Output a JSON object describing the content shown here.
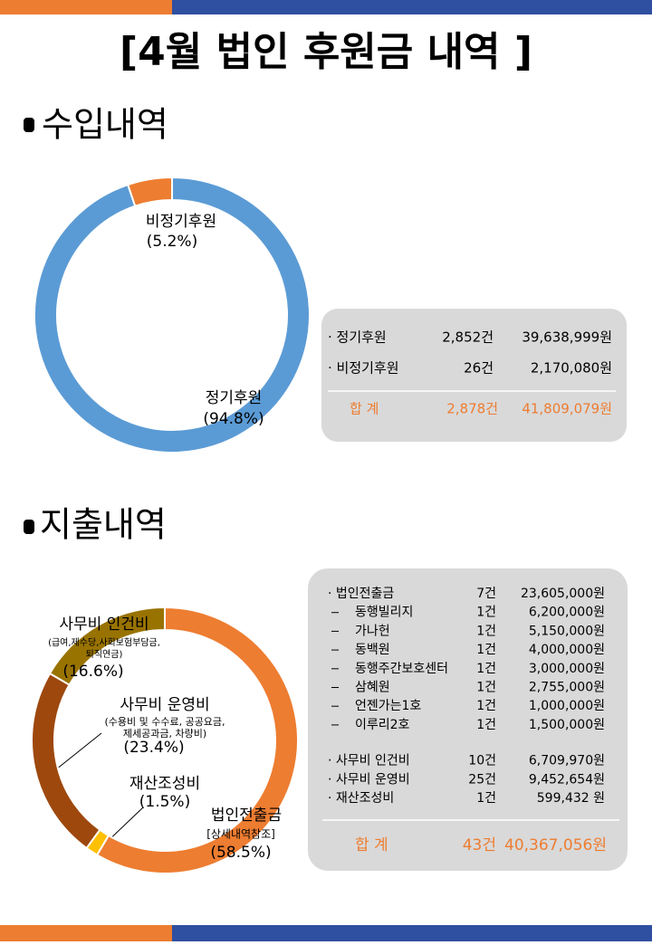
{
  "header": {
    "title": "[4월 법인 후원금 내역 ]"
  },
  "income": {
    "heading": "수입내역",
    "chart": {
      "type": "pie",
      "categories": [
        "정기후원",
        "비정기후원"
      ],
      "values": [
        94.8,
        5.2
      ],
      "value_labels": [
        "(94.8%)",
        "(5.2%)"
      ],
      "colors": [
        "#5b9bd5",
        "#ed7d31"
      ]
    },
    "table": {
      "rows": [
        [
          "· 정기후원",
          "2,852건",
          "39,638,999원"
        ],
        [
          "· 비정기후원",
          "26건",
          "2,170,080원"
        ]
      ],
      "total": [
        "합  계",
        "2,878건",
        "41,809,079원"
      ]
    }
  },
  "expense": {
    "heading": "지출내역",
    "chart": {
      "type": "pie",
      "categories": [
        "법인전출금",
        "재산조성비",
        "사무비 운영비",
        "사무비 인건비"
      ],
      "values": [
        58.5,
        1.5,
        23.4,
        16.6
      ],
      "value_labels": [
        "(58.5%)",
        "(1.5%)",
        "(23.4%)",
        "(16.6%)"
      ],
      "notes": [
        [
          "[상세내역참조]"
        ],
        null,
        [
          "(수용비 및 수수료, 공공요금,",
          "제세공과금, 차량비)"
        ],
        [
          "(급여,제수당,사회보험부담금,",
          "퇴직연금)"
        ]
      ],
      "colors": [
        "#ed7d31",
        "#ffc000",
        "#9e480e",
        "#997300"
      ]
    },
    "table": {
      "rows": [
        {
          "name": "· 법인전출금",
          "count": "7건",
          "amount": "23,605,000원",
          "sub": [
            [
              "동행빌리지",
              "1건",
              "6,200,000원"
            ],
            [
              "가나헌",
              "1건",
              "5,150,000원"
            ],
            [
              "동백원",
              "1건",
              "4,000,000원"
            ],
            [
              "동행주간보호센터",
              "1건",
              "3,000,000원"
            ],
            [
              "삼혜원",
              "1건",
              "2,755,000원"
            ],
            [
              "언젠가는1호",
              "1건",
              "1,000,000원"
            ],
            [
              "이루리2호",
              "1건",
              "1,500,000원"
            ]
          ]
        },
        {
          "name": "· 사무비 인건비",
          "count": "10건",
          "amount": "6,709,970원"
        },
        {
          "name": "· 사무비 운영비",
          "count": "25건",
          "amount": "9,452,654원"
        },
        {
          "name": "· 재산조성비",
          "count": "1건",
          "amount": "599,432 원"
        }
      ],
      "total": [
        "합  계",
        "43건",
        "40,367,056원"
      ]
    }
  }
}
